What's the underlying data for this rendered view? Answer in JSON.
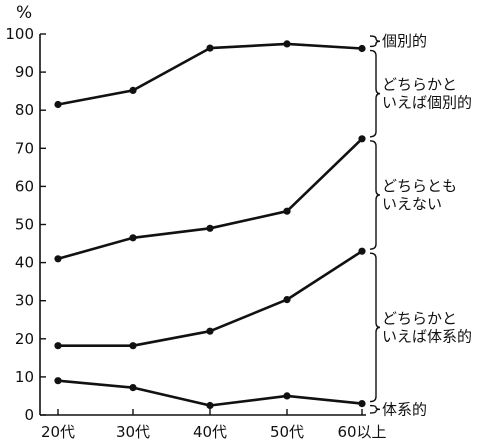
{
  "chart_data": {
    "type": "line",
    "ylabel": "%",
    "categories": [
      "20代",
      "30代",
      "40代",
      "50代",
      "60以上"
    ],
    "ylim": [
      0,
      100
    ],
    "yticks": [
      0,
      10,
      20,
      30,
      40,
      50,
      60,
      70,
      80,
      90,
      100
    ],
    "series": [
      {
        "values": [
          81.5,
          85.2,
          96.3,
          97.4,
          96.2
        ]
      },
      {
        "values": [
          41.0,
          46.5,
          49.0,
          53.5,
          72.5
        ]
      },
      {
        "values": [
          18.2,
          18.2,
          22.0,
          30.3,
          43.0
        ]
      },
      {
        "values": [
          9.0,
          7.2,
          2.5,
          5.0,
          3.0
        ]
      }
    ],
    "bands": [
      {
        "lines": [
          "個別的"
        ],
        "from": 96.2,
        "to": 100
      },
      {
        "lines": [
          "どちらかと",
          "いえば個別的"
        ],
        "from": 72.5,
        "to": 96.2
      },
      {
        "lines": [
          "どちらとも",
          "いえない"
        ],
        "from": 43.0,
        "to": 72.5
      },
      {
        "lines": [
          "どちらかと",
          "いえば体系的"
        ],
        "from": 3.0,
        "to": 43.0
      },
      {
        "lines": [
          "体系的"
        ],
        "from": 0,
        "to": 3.0
      }
    ]
  }
}
